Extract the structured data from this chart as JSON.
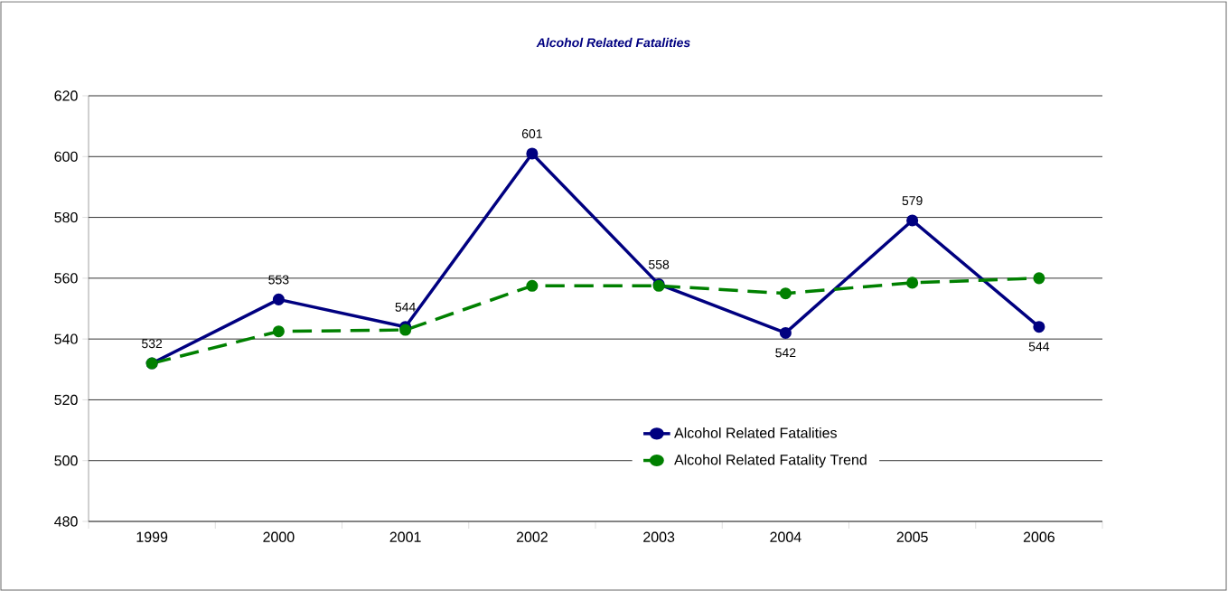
{
  "chart_data": {
    "type": "line",
    "title": "Alcohol Related Fatalities",
    "categories": [
      "1999",
      "2000",
      "2001",
      "2002",
      "2003",
      "2004",
      "2005",
      "2006"
    ],
    "series": [
      {
        "name": "Alcohol Related Fatalities",
        "color": "#000080",
        "values": [
          532,
          553,
          544,
          601,
          558,
          542,
          579,
          544
        ],
        "value_labels": [
          "532",
          "553",
          "544",
          "601",
          "558",
          "542",
          "579",
          "544"
        ],
        "line_style": "solid"
      },
      {
        "name": "Alcohol Related Fatality Trend",
        "color": "#008000",
        "values": [
          532,
          542.5,
          543,
          557.5,
          557.5,
          555,
          558.5,
          560
        ],
        "line_style": "dashed"
      }
    ],
    "ylim": [
      480,
      620
    ],
    "yticks": [
      480,
      500,
      520,
      540,
      560,
      580,
      600,
      620
    ],
    "grid": "y",
    "legend": "bottom right",
    "marker": "circle"
  }
}
